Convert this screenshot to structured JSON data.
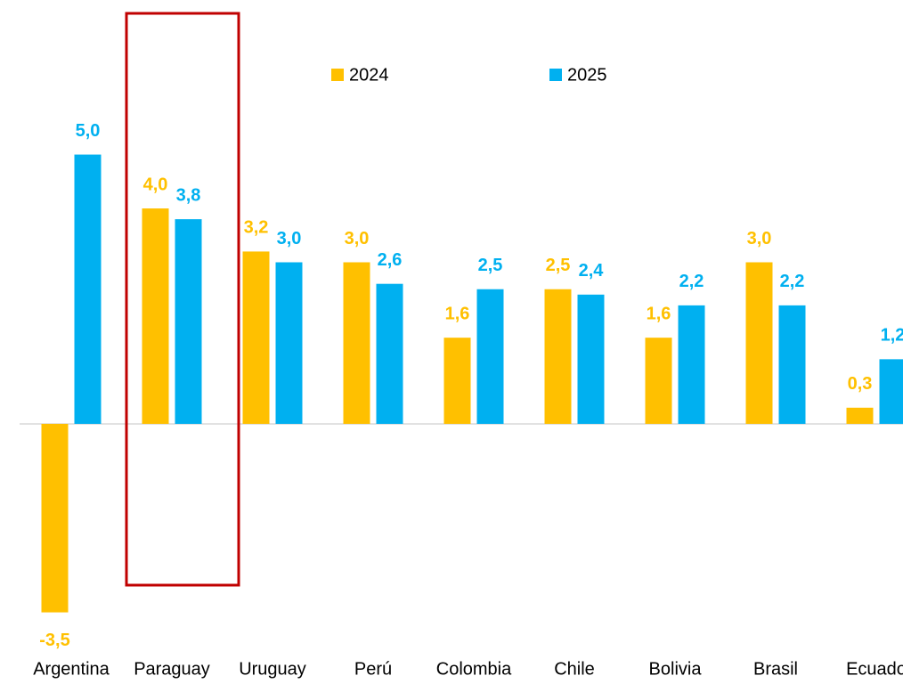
{
  "chart_data": {
    "type": "bar",
    "categories": [
      "Argentina",
      "Paraguay",
      "Uruguay",
      "Perú",
      "Colombia",
      "Chile",
      "Bolivia",
      "Brasil",
      "Ecuado"
    ],
    "series": [
      {
        "name": "2024",
        "color": "#FFC000",
        "values": [
          -3.5,
          4.0,
          3.2,
          3.0,
          1.6,
          2.5,
          1.6,
          3.0,
          0.3
        ],
        "value_labels": [
          "-3,5",
          "4,0",
          "3,2",
          "3,0",
          "1,6",
          "2,5",
          "1,6",
          "3,0",
          "0,3"
        ]
      },
      {
        "name": "2025",
        "color": "#00B0F0",
        "values": [
          5.0,
          3.8,
          3.0,
          2.6,
          2.5,
          2.4,
          2.2,
          2.2,
          1.2
        ],
        "value_labels": [
          "5,0",
          "3,8",
          "3,0",
          "2,6",
          "2,5",
          "2,4",
          "2,2",
          "2,2",
          "1,2"
        ]
      }
    ],
    "ylim": [
      -4.83,
      7.87
    ]
  }
}
